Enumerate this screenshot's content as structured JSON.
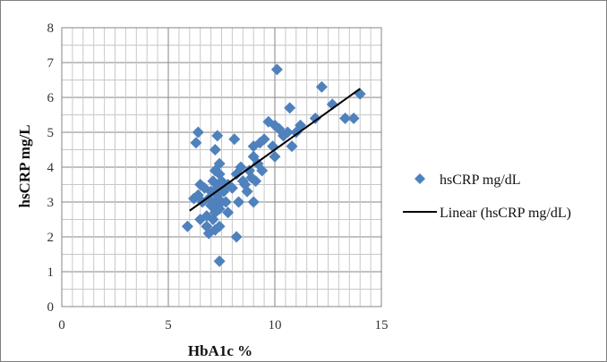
{
  "chart_data": {
    "type": "scatter",
    "xlabel": "HbA1c %",
    "ylabel": "hsCRP mg/L",
    "xlim": [
      0,
      15
    ],
    "ylim": [
      0,
      8
    ],
    "x_ticks": [
      0,
      5,
      10,
      15
    ],
    "y_ticks": [
      0,
      1,
      2,
      3,
      4,
      5,
      6,
      7,
      8
    ],
    "grid": true,
    "legend_position": "right",
    "marker_color": "#4f81bd",
    "line_color": "#000000",
    "series": [
      {
        "name": "hsCRP mg/dL",
        "marker": "diamond",
        "points": [
          [
            5.9,
            2.3
          ],
          [
            6.2,
            3.1
          ],
          [
            6.3,
            4.7
          ],
          [
            6.4,
            5.0
          ],
          [
            6.4,
            3.2
          ],
          [
            6.5,
            3.5
          ],
          [
            6.5,
            2.5
          ],
          [
            6.6,
            3.0
          ],
          [
            6.7,
            3.4
          ],
          [
            6.8,
            2.6
          ],
          [
            6.8,
            2.3
          ],
          [
            6.9,
            2.1
          ],
          [
            6.9,
            3.1
          ],
          [
            7.0,
            3.3
          ],
          [
            7.0,
            2.9
          ],
          [
            7.1,
            2.5
          ],
          [
            7.1,
            3.6
          ],
          [
            7.2,
            2.2
          ],
          [
            7.2,
            2.7
          ],
          [
            7.2,
            3.0
          ],
          [
            7.2,
            3.9
          ],
          [
            7.2,
            4.5
          ],
          [
            7.3,
            3.4
          ],
          [
            7.3,
            4.9
          ],
          [
            7.3,
            3.2
          ],
          [
            7.4,
            4.1
          ],
          [
            7.4,
            3.8
          ],
          [
            7.4,
            2.8
          ],
          [
            7.4,
            2.3
          ],
          [
            7.4,
            1.3
          ],
          [
            7.5,
            3.6
          ],
          [
            7.5,
            3.0
          ],
          [
            7.6,
            3.3
          ],
          [
            7.7,
            3.0
          ],
          [
            7.8,
            2.7
          ],
          [
            7.8,
            3.5
          ],
          [
            8.0,
            3.4
          ],
          [
            8.1,
            4.8
          ],
          [
            8.2,
            2.0
          ],
          [
            8.2,
            3.8
          ],
          [
            8.3,
            3.0
          ],
          [
            8.4,
            4.0
          ],
          [
            8.5,
            3.6
          ],
          [
            8.6,
            3.5
          ],
          [
            8.7,
            3.3
          ],
          [
            8.8,
            3.9
          ],
          [
            8.9,
            3.7
          ],
          [
            9.0,
            3.0
          ],
          [
            9.0,
            4.3
          ],
          [
            9.0,
            4.6
          ],
          [
            9.1,
            3.6
          ],
          [
            9.2,
            4.1
          ],
          [
            9.3,
            4.7
          ],
          [
            9.4,
            3.9
          ],
          [
            9.5,
            4.8
          ],
          [
            9.7,
            5.3
          ],
          [
            9.9,
            4.6
          ],
          [
            10.0,
            4.3
          ],
          [
            10.0,
            5.2
          ],
          [
            10.1,
            6.8
          ],
          [
            10.2,
            5.1
          ],
          [
            10.4,
            4.9
          ],
          [
            10.6,
            5.0
          ],
          [
            10.7,
            5.7
          ],
          [
            10.8,
            4.6
          ],
          [
            11.0,
            5.0
          ],
          [
            11.2,
            5.2
          ],
          [
            11.9,
            5.4
          ],
          [
            12.2,
            6.3
          ],
          [
            12.7,
            5.8
          ],
          [
            13.3,
            5.4
          ],
          [
            13.7,
            5.4
          ],
          [
            14.0,
            6.1
          ]
        ]
      },
      {
        "name": "Linear (hsCRP mg/dL)",
        "type": "trendline",
        "x": [
          6.0,
          14.0
        ],
        "y": [
          2.75,
          6.25
        ]
      }
    ]
  }
}
